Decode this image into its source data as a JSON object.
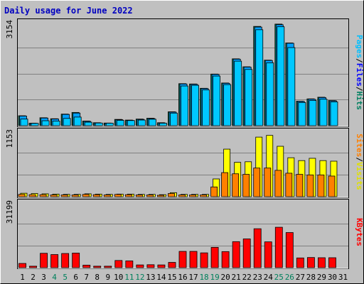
{
  "chart_data": {
    "type": "bar",
    "title": "Daily usage for June 2022",
    "categories": [
      "1",
      "2",
      "3",
      "4",
      "5",
      "6",
      "7",
      "8",
      "9",
      "10",
      "11",
      "12",
      "13",
      "14",
      "15",
      "16",
      "17",
      "18",
      "19",
      "20",
      "21",
      "22",
      "23",
      "24",
      "25",
      "26",
      "27",
      "28",
      "29",
      "30",
      "31"
    ],
    "weekend_days": [
      "4",
      "5",
      "11",
      "12",
      "18",
      "19",
      "25",
      "26"
    ],
    "panels": [
      {
        "id": "hits-files-pages",
        "max_label": "3154",
        "ymax": 3154,
        "series": [
          {
            "name": "Pages",
            "color": "#0000ff",
            "values": [
              200,
              70,
              150,
              140,
              220,
              260,
              105,
              80,
              75,
              160,
              155,
              170,
              195,
              75,
              380,
              1200,
              1220,
              1080,
              1500,
              1240,
              1950,
              1700,
              2900,
              1900,
              2990,
              2360,
              700,
              760,
              800,
              720,
              null
            ]
          },
          {
            "name": "Files",
            "color": "#00bfff",
            "values": [
              290,
              70,
              230,
              200,
              340,
              380,
              130,
              80,
              70,
              180,
              160,
              190,
              215,
              80,
              410,
              1260,
              1250,
              1120,
              1550,
              1280,
              2010,
              1770,
              2980,
              1970,
              3050,
              2490,
              730,
              800,
              850,
              750,
              null
            ]
          },
          {
            "name": "Hits",
            "color": "#008060",
            "values": [
              300,
              75,
              240,
              210,
              350,
              400,
              140,
              90,
              80,
              190,
              170,
              200,
              225,
              90,
              420,
              1270,
              1260,
              1130,
              1560,
              1290,
              2020,
              1780,
              3000,
              1980,
              3070,
              2500,
              740,
              810,
              860,
              760,
              null
            ]
          }
        ]
      },
      {
        "id": "visits-sites",
        "max_label": "1153",
        "ymax": 1153,
        "series": [
          {
            "name": "Visits",
            "color": "#ffff00",
            "values": [
              60,
              55,
              50,
              45,
              40,
              40,
              50,
              45,
              40,
              45,
              45,
              40,
              40,
              35,
              70,
              40,
              40,
              40,
              310,
              830,
              600,
              610,
              1040,
              1070,
              880,
              680,
              630,
              670,
              630,
              620,
              null
            ]
          },
          {
            "name": "Sites",
            "color": "#ff8000",
            "values": [
              40,
              35,
              35,
              30,
              30,
              30,
              40,
              35,
              30,
              40,
              35,
              30,
              30,
              25,
              55,
              30,
              30,
              30,
              170,
              420,
              400,
              390,
              500,
              500,
              460,
              410,
              390,
              380,
              380,
              360,
              null
            ]
          }
        ]
      },
      {
        "id": "kbytes",
        "max_label": "31199",
        "ymax": 31199,
        "series": [
          {
            "name": "KBytes",
            "color": "#ff0000",
            "values": [
              2000,
              700,
              6800,
              6200,
              6700,
              6900,
              1200,
              700,
              700,
              3400,
              3200,
              1300,
              1400,
              1300,
              2500,
              7700,
              7700,
              7000,
              9600,
              7600,
              12300,
              13600,
              18400,
              12200,
              19100,
              16600,
              4600,
              4800,
              4700,
              4700,
              null
            ]
          }
        ]
      }
    ],
    "right_labels": {
      "pages": "Pages",
      "files": "Files",
      "hits": "Hits",
      "sites": "Sites",
      "visits": "Visits",
      "kbytes": "KBytes",
      "slash": "/"
    },
    "colors": {
      "background": "#c0c0c0",
      "panel": "#c0c0c0",
      "title": "#0000c0",
      "grid": "#808080",
      "weekday_label": "#000000",
      "weekend_label": "#00805c"
    },
    "grid": true
  }
}
